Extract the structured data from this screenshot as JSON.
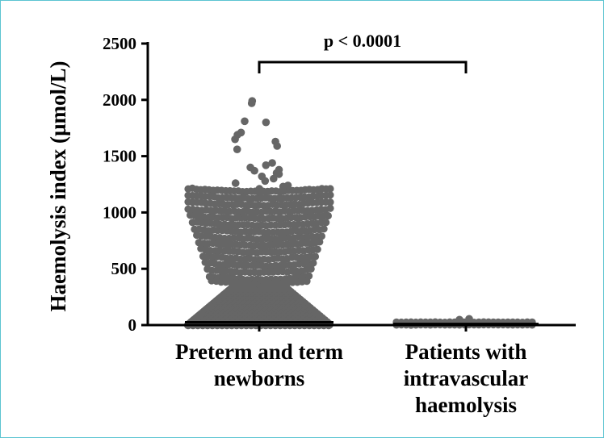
{
  "chart_data": {
    "type": "scatter",
    "subtype": "dot-plot",
    "ylabel": "Haemolysis index (µmol/L)",
    "ylim": [
      0,
      2500
    ],
    "yticks": [
      0,
      500,
      1000,
      1500,
      2000,
      2500
    ],
    "ytick_labels": [
      "0",
      "500",
      "1000",
      "1500",
      "2000",
      "2500"
    ],
    "categories": [
      {
        "lines": [
          "Preterm and term",
          "newborns"
        ]
      },
      {
        "lines": [
          "Patients with",
          "intravascular",
          "haemolysis"
        ]
      }
    ],
    "series": [
      {
        "name": "Preterm and term newborns",
        "median": 25,
        "outliers": [
          1990,
          1970,
          1810,
          1800,
          1710,
          1690,
          1650,
          1630,
          1590,
          1560,
          1440,
          1400,
          1370,
          1340,
          1300,
          1260,
          1230
        ],
        "bands": [
          1200,
          1140,
          1080,
          1020,
          960,
          900,
          840,
          780,
          720,
          660,
          600,
          540,
          480,
          420,
          380
        ],
        "dense_range": [
          0,
          330
        ]
      },
      {
        "name": "Patients with intravascular haemolysis",
        "median": 10,
        "values_range": [
          0,
          55
        ]
      }
    ],
    "annotation": {
      "text": "p < 0.0001",
      "between": [
        0,
        1
      ]
    },
    "colors": {
      "points": "#666666",
      "axis": "#000000",
      "median": "#000000"
    }
  }
}
